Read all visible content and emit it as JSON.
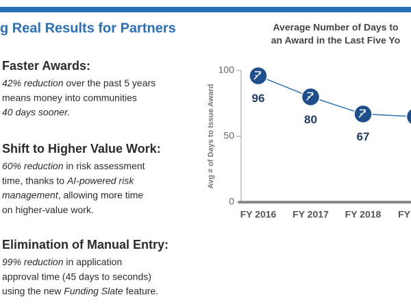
{
  "header": {
    "title": "g Real Results for Partners"
  },
  "sections": [
    {
      "heading": "Faster Awards:",
      "lines": [
        [
          {
            "text": "42% reduction",
            "italic": true
          },
          {
            "text": " over the past 5 years",
            "italic": false
          }
        ],
        [
          {
            "text": "means money into communities",
            "italic": false
          }
        ],
        [
          {
            "text": "40 days sooner.",
            "italic": true
          }
        ]
      ]
    },
    {
      "heading": "Shift to Higher Value Work:",
      "lines": [
        [
          {
            "text": "60% reduction",
            "italic": true
          },
          {
            "text": " in risk assessment",
            "italic": false
          }
        ],
        [
          {
            "text": "time, thanks to ",
            "italic": false
          },
          {
            "text": "AI-powered risk",
            "italic": true
          }
        ],
        [
          {
            "text": "management",
            "italic": true
          },
          {
            "text": ", allowing more time",
            "italic": false
          }
        ],
        [
          {
            "text": "on higher-value work.",
            "italic": false
          }
        ]
      ]
    },
    {
      "heading": "Elimination of Manual Entry:",
      "lines": [
        [
          {
            "text": "99% reduction",
            "italic": true
          },
          {
            "text": " in application",
            "italic": false
          }
        ],
        [
          {
            "text": "approval time (45 days to seconds)",
            "italic": false
          }
        ],
        [
          {
            "text": "using the new ",
            "italic": false
          },
          {
            "text": "Funding Slate",
            "italic": true
          },
          {
            "text": " feature.",
            "italic": false
          }
        ]
      ]
    }
  ],
  "chart_data": {
    "type": "line",
    "title": [
      "Average Number of Days to",
      "an Award in the Last Five Yo"
    ],
    "y_label": "Avg # of Days to Issue Award",
    "categories": [
      "FY 2016",
      "FY 2017",
      "FY 2018",
      "FY"
    ],
    "values": [
      96,
      80,
      67,
      65
    ],
    "value_labels": [
      "96",
      "80",
      "67",
      null
    ],
    "color": "#2a72b5",
    "marker_color": "#1f4e8c",
    "ylim": [
      0,
      100
    ],
    "yticks": [
      0,
      50,
      100
    ]
  }
}
